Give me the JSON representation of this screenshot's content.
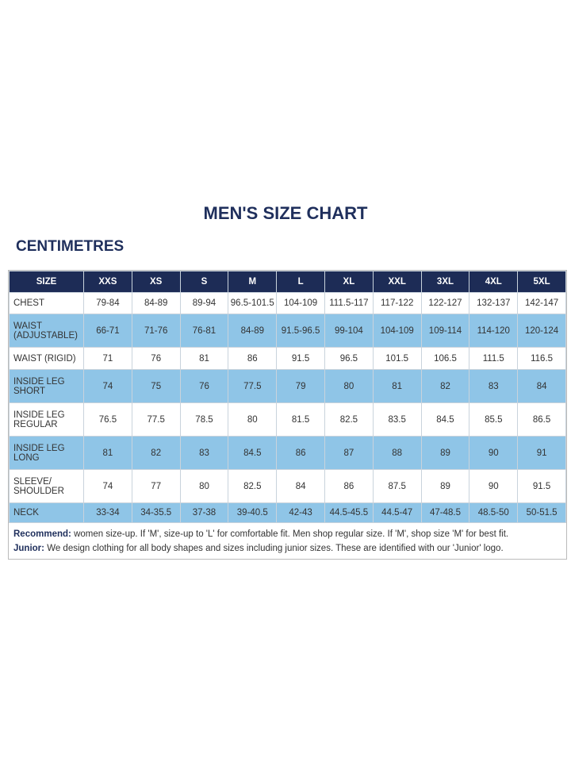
{
  "title": "MEN'S SIZE CHART",
  "subtitle": "CENTIMETRES",
  "table": {
    "header": [
      "SIZE",
      "XXS",
      "XS",
      "S",
      "M",
      "L",
      "XL",
      "XXL",
      "3XL",
      "4XL",
      "5XL"
    ],
    "rows": [
      [
        "CHEST",
        "79-84",
        "84-89",
        "89-94",
        "96.5-101.5",
        "104-109",
        "111.5-117",
        "117-122",
        "122-127",
        "132-137",
        "142-147"
      ],
      [
        "WAIST (ADJUSTABLE)",
        "66-71",
        "71-76",
        "76-81",
        "84-89",
        "91.5-96.5",
        "99-104",
        "104-109",
        "109-114",
        "114-120",
        "120-124"
      ],
      [
        "WAIST (RIGID)",
        "71",
        "76",
        "81",
        "86",
        "91.5",
        "96.5",
        "101.5",
        "106.5",
        "111.5",
        "116.5"
      ],
      [
        "INSIDE LEG SHORT",
        "74",
        "75",
        "76",
        "77.5",
        "79",
        "80",
        "81",
        "82",
        "83",
        "84"
      ],
      [
        "INSIDE LEG REGULAR",
        "76.5",
        "77.5",
        "78.5",
        "80",
        "81.5",
        "82.5",
        "83.5",
        "84.5",
        "85.5",
        "86.5"
      ],
      [
        "INSIDE LEG LONG",
        "81",
        "82",
        "83",
        "84.5",
        "86",
        "87",
        "88",
        "89",
        "90",
        "91"
      ],
      [
        "SLEEVE/ SHOULDER",
        "74",
        "77",
        "80",
        "82.5",
        "84",
        "86",
        "87.5",
        "89",
        "90",
        "91.5"
      ],
      [
        "NECK",
        "33-34",
        "34-35.5",
        "37-38",
        "39-40.5",
        "42-43",
        "44.5-45.5",
        "44.5-47",
        "47-48.5",
        "48.5-50",
        "50-51.5"
      ]
    ]
  },
  "notes": [
    {
      "label": "Recommend:",
      "text": "women size-up. If 'M', size-up to 'L' for comfortable fit. Men shop regular size. If 'M', shop size 'M' for best fit."
    },
    {
      "label": "Junior:",
      "text": "We design clothing for all body shapes and sizes including junior sizes. These are identified with our 'Junior' logo."
    }
  ]
}
